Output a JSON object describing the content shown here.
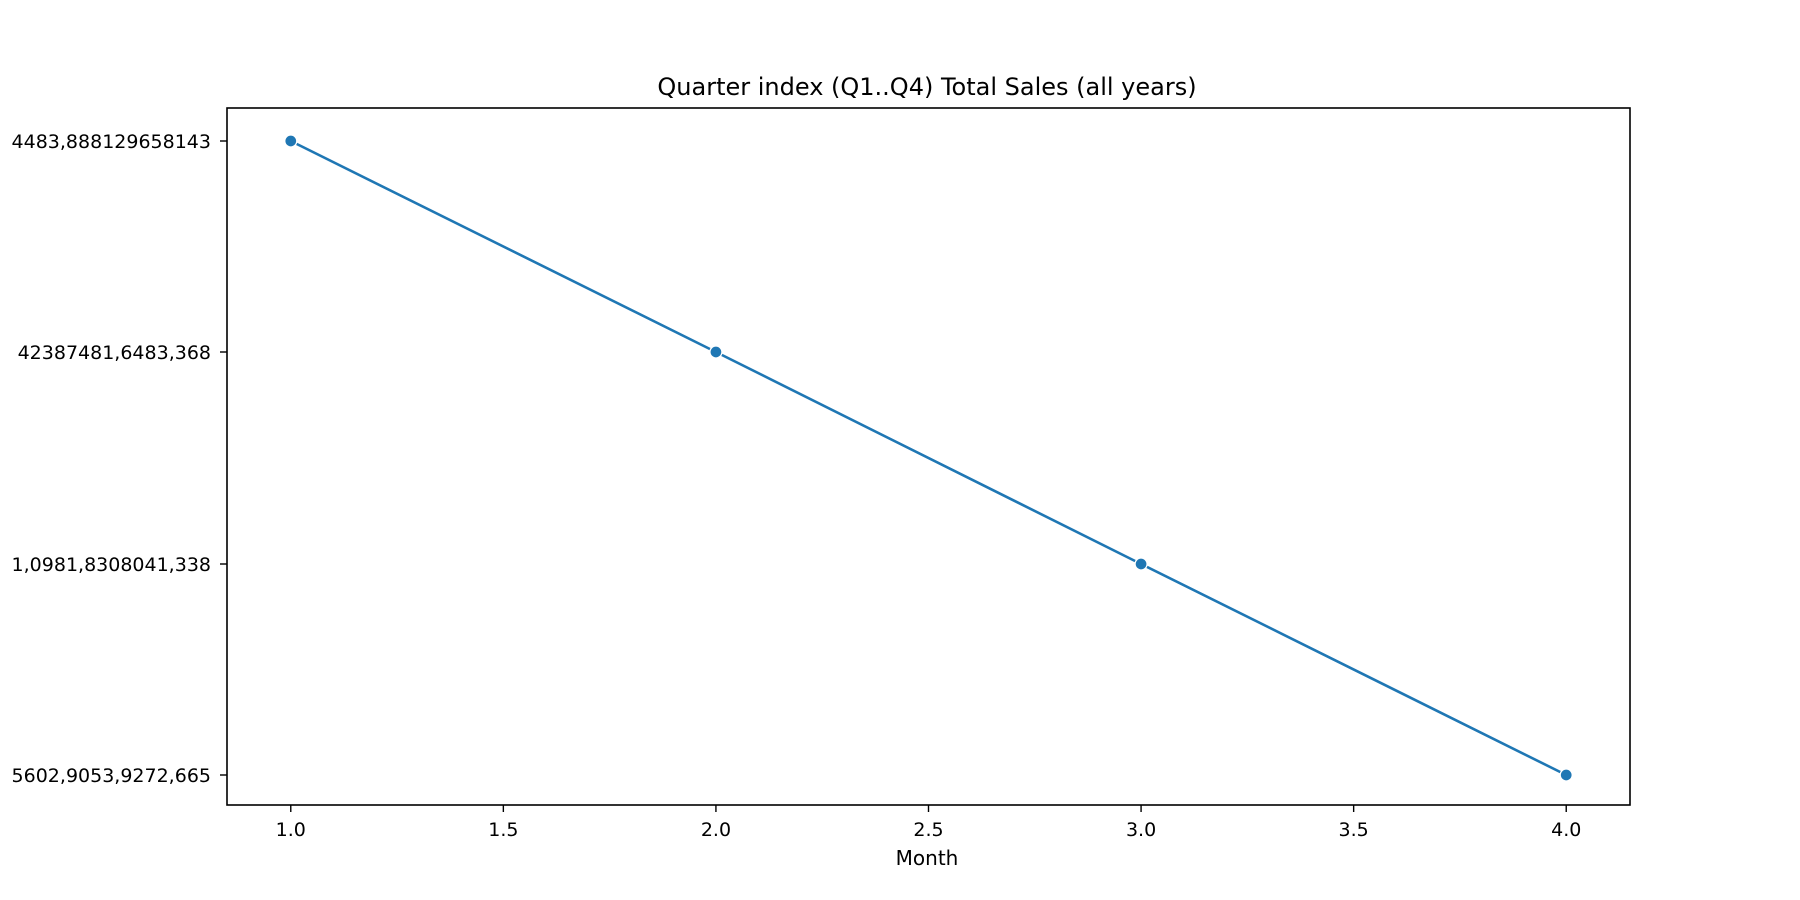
{
  "chart_data": {
    "type": "line",
    "title": "Quarter index (Q1..Q4) Total Sales (all years)",
    "xlabel": "Month",
    "ylabel": "",
    "xlim": [
      0.85,
      4.15
    ],
    "x_ticks": [
      1.0,
      1.5,
      2.0,
      2.5,
      3.0,
      3.5,
      4.0
    ],
    "x_tick_labels": [
      "1.0",
      "1.5",
      "2.0",
      "2.5",
      "3.0",
      "3.5",
      "4.0"
    ],
    "y_categories": [
      "5602,9053,9272,665",
      "1,0981,8308041,338",
      "42387481,6483,368",
      "4483,888129658143"
    ],
    "series": [
      {
        "x": [
          1.0,
          2.0,
          3.0,
          4.0
        ],
        "y": [
          "4483,888129658143",
          "42387481,6483,368",
          "1,0981,8308041,338",
          "5602,9053,9272,665"
        ]
      }
    ],
    "grid": false,
    "colors": {
      "line": "#1f77b4",
      "axes": "#000000"
    }
  }
}
